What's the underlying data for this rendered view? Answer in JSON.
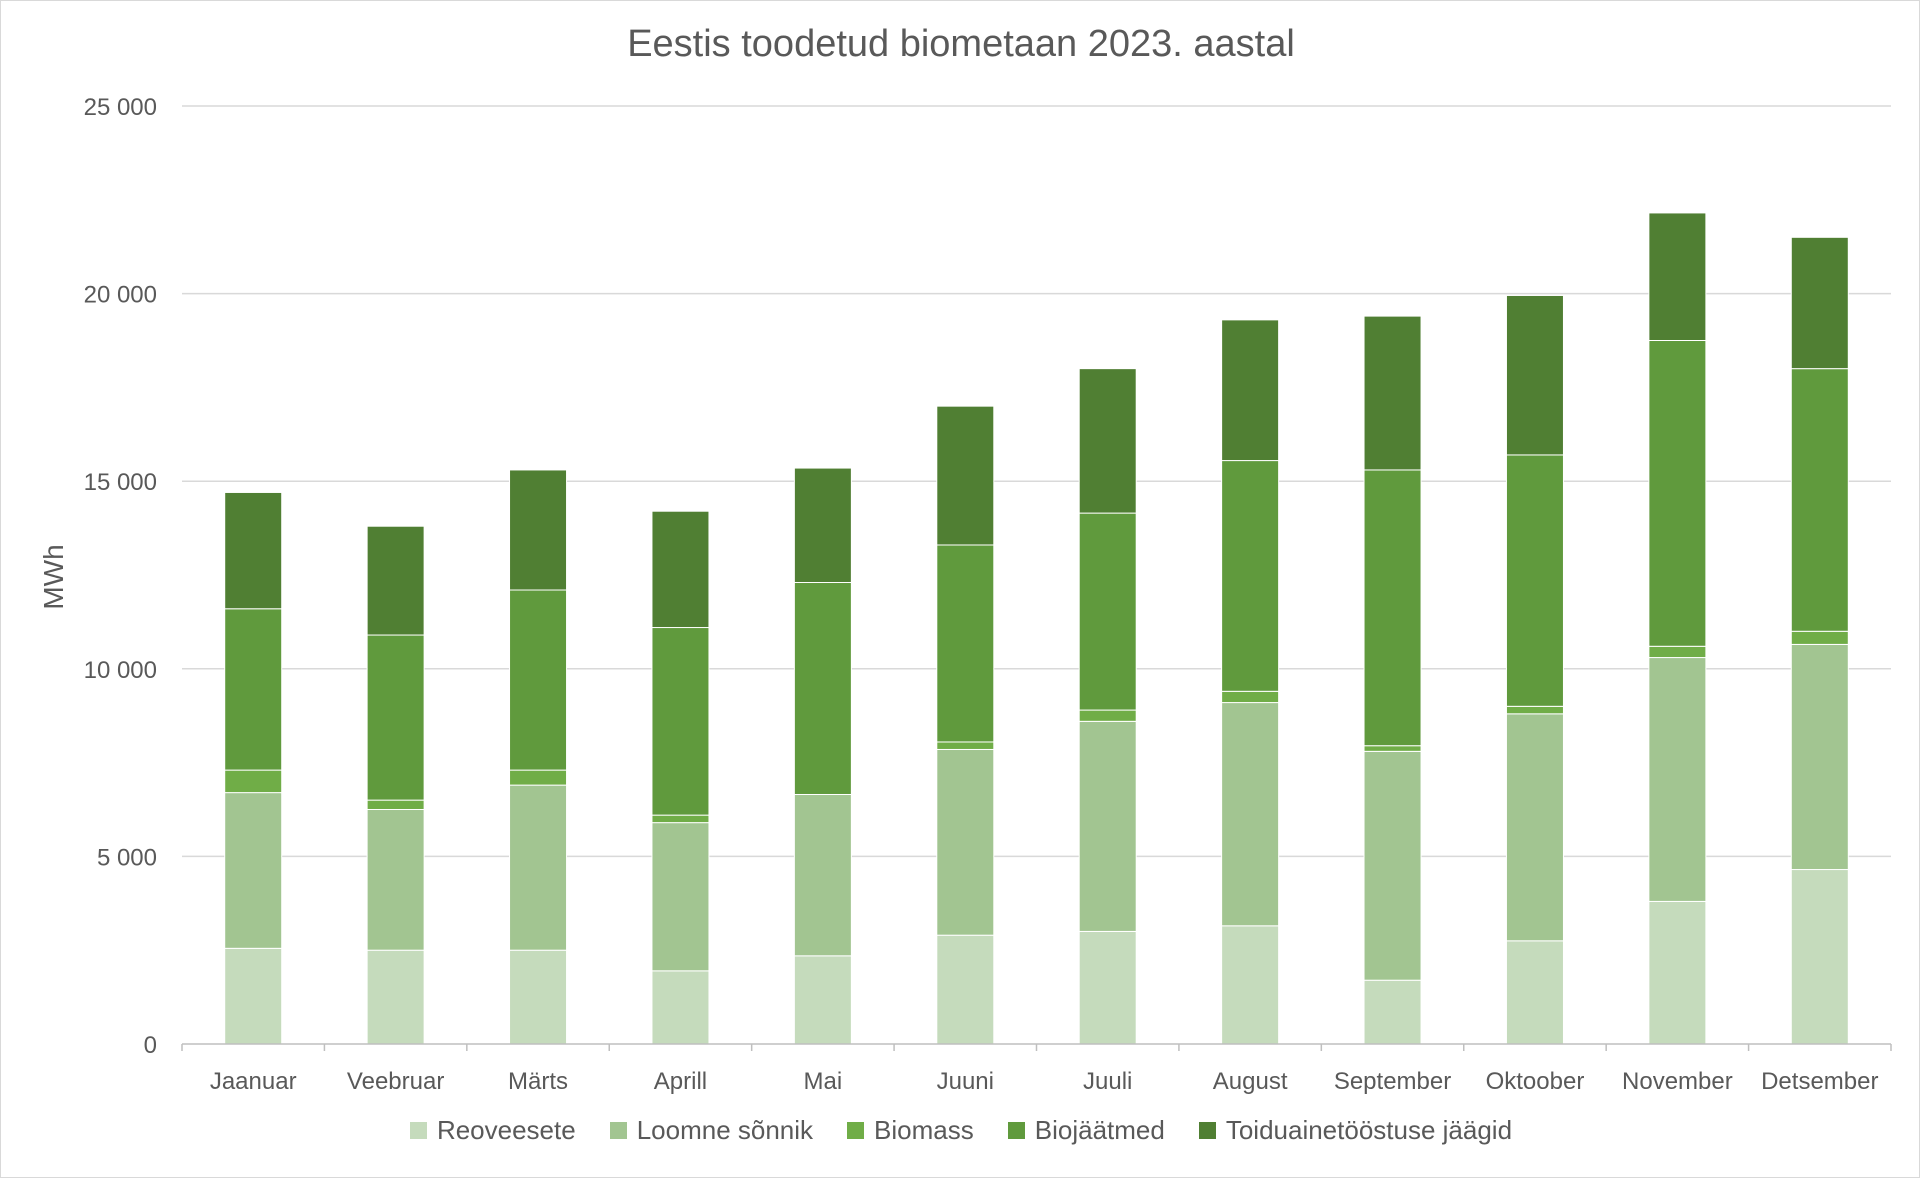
{
  "chart_data": {
    "type": "bar",
    "stacked": true,
    "title": "Eestis toodetud biometaan 2023. aastal",
    "xlabel": "",
    "ylabel": "MWh",
    "ylim": [
      0,
      25000
    ],
    "yticks": [
      0,
      5000,
      10000,
      15000,
      20000,
      25000
    ],
    "ytick_labels": [
      "0",
      "5 000",
      "10 000",
      "15 000",
      "20 000",
      "25 000"
    ],
    "grid": true,
    "legend_position": "bottom",
    "categories": [
      "Jaanuar",
      "Veebruar",
      "Märts",
      "Aprill",
      "Mai",
      "Juuni",
      "Juuli",
      "August",
      "September",
      "Oktoober",
      "November",
      "Detsember"
    ],
    "series": [
      {
        "name": "Reoveesete",
        "color": "#c5dbbc",
        "values": [
          2550,
          2500,
          2500,
          1950,
          2350,
          2900,
          3000,
          3150,
          1700,
          2750,
          3800,
          4650
        ]
      },
      {
        "name": "Loomne sõnnik",
        "color": "#a2c591",
        "values": [
          4150,
          3750,
          4400,
          3950,
          4300,
          4950,
          5600,
          5950,
          6100,
          6050,
          6500,
          6000
        ]
      },
      {
        "name": "Biomass",
        "color": "#70ad47",
        "values": [
          600,
          250,
          400,
          200,
          0,
          200,
          300,
          300,
          150,
          200,
          300,
          350
        ]
      },
      {
        "name": "Biojäätmed",
        "color": "#609a3d",
        "values": [
          4300,
          4400,
          4800,
          5000,
          5650,
          5250,
          5250,
          6150,
          7350,
          6700,
          8150,
          7000
        ]
      },
      {
        "name": "Toiduainetööstuse jäägid",
        "color": "#507f33",
        "values": [
          3100,
          2900,
          3200,
          3100,
          3050,
          3700,
          3850,
          3750,
          4100,
          4250,
          3400,
          3500
        ]
      }
    ]
  }
}
